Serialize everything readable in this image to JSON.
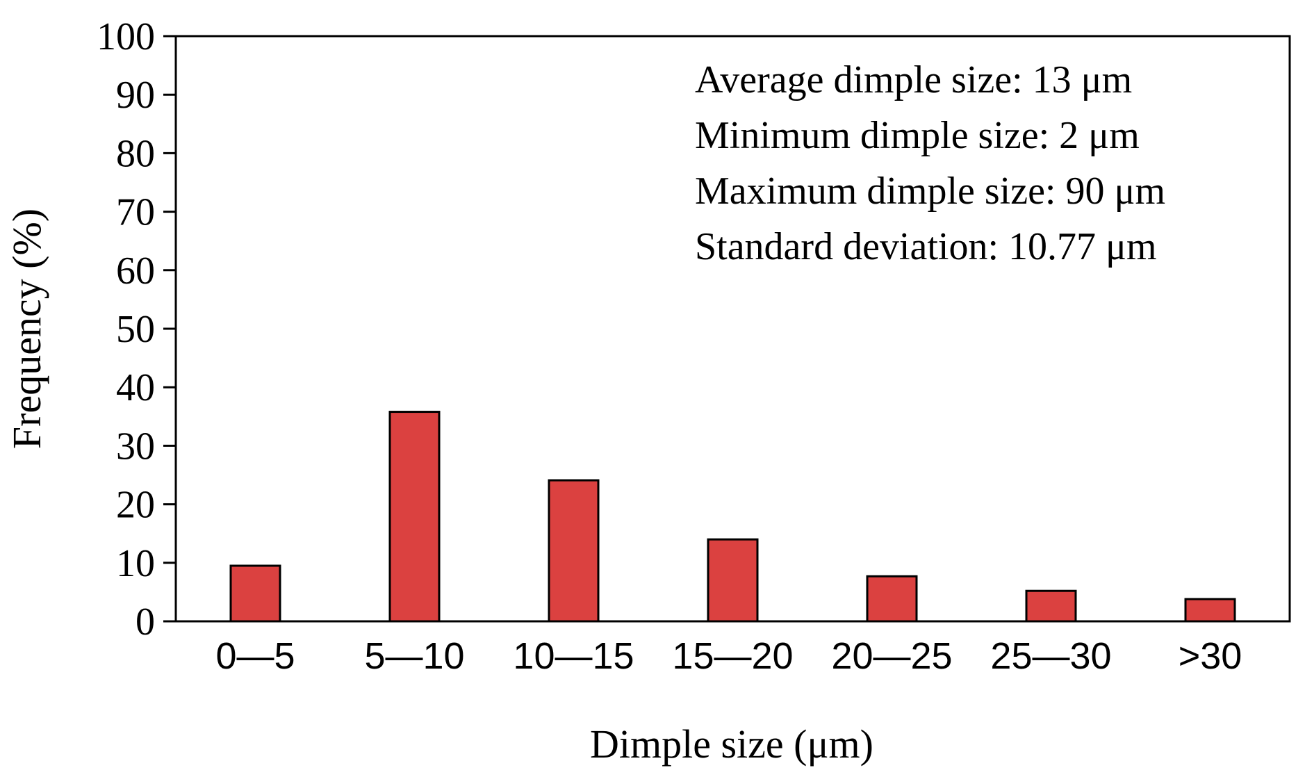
{
  "chart_data": {
    "type": "bar",
    "title": "",
    "xlabel": "Dimple size (μm)",
    "ylabel": "Frequency (%)",
    "categories": [
      "0—5",
      "5—10",
      "10—15",
      "15—20",
      "20—25",
      "25—30",
      ">30"
    ],
    "values": [
      9.5,
      35.8,
      24.1,
      14.0,
      7.7,
      5.2,
      3.8
    ],
    "ylim": [
      0,
      100
    ],
    "yticks": [
      "0",
      "10",
      "20",
      "30",
      "40",
      "50",
      "60",
      "70",
      "80",
      "90",
      "100"
    ],
    "grid": false,
    "legend": "none",
    "bar_color": "#db4140",
    "annotations": [
      "Average dimple size: 13 μm",
      "Minimum dimple size: 2 μm",
      "Maximum dimple size: 90 μm",
      "Standard deviation: 10.77 μm"
    ]
  }
}
